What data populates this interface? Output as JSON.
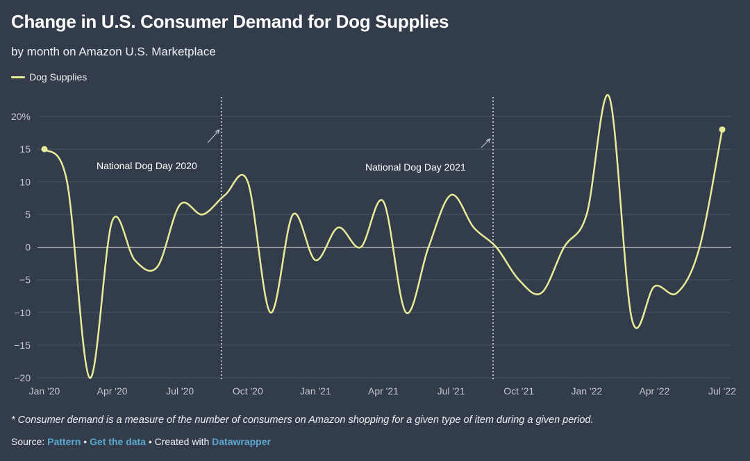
{
  "title": "Change in U.S. Consumer Demand for Dog Supplies",
  "subtitle": "by month on Amazon U.S. Marketplace",
  "legend": {
    "label": "Dog Supplies",
    "color": "#e8ec97"
  },
  "footnote": "* Consumer demand is a measure of the number of consumers on Amazon shopping for a given type of item during a given period.",
  "source": {
    "prefix": "Source: ",
    "pattern_link": "Pattern",
    "sep1": " • ",
    "data_link": "Get the data",
    "sep2": " • Created with ",
    "datawrapper_link": "Datawrapper"
  },
  "chart_data": {
    "type": "line",
    "title": "Change in U.S. Consumer Demand for Dog Supplies",
    "subtitle": "by month on Amazon U.S. Marketplace",
    "xlabel": "",
    "ylabel": "",
    "ylim": [
      -20,
      20
    ],
    "yticks": [
      -20,
      -15,
      -10,
      -5,
      0,
      5,
      10,
      15,
      20
    ],
    "ytick_labels": [
      "−20",
      "−15",
      "−10",
      "−5",
      "0",
      "5",
      "10",
      "15",
      "20%"
    ],
    "xticks": [
      "Jan '20",
      "Apr '20",
      "Jul '20",
      "Oct '20",
      "Jan '21",
      "Apr '21",
      "Jul '21",
      "Oct '21",
      "Jan '22",
      "Apr '22",
      "Jul '22"
    ],
    "grid": true,
    "legend_position": "top-left",
    "series": [
      {
        "name": "Dog Supplies",
        "color": "#e8ec97",
        "x": [
          "Jan '20",
          "Feb '20",
          "Mar '20",
          "Apr '20",
          "May '20",
          "Jun '20",
          "Jul '20",
          "Aug '20",
          "Sep '20",
          "Oct '20",
          "Nov '20",
          "Dec '20",
          "Jan '21",
          "Feb '21",
          "Mar '21",
          "Apr '21",
          "May '21",
          "Jun '21",
          "Jul '21",
          "Aug '21",
          "Sep '21",
          "Oct '21",
          "Nov '21",
          "Dec '21",
          "Jan '22",
          "Feb '22",
          "Mar '22",
          "Apr '22",
          "May '22",
          "Jun '22",
          "Jul '22"
        ],
        "values": [
          15,
          10,
          -20,
          4,
          -2,
          -3,
          6.5,
          5,
          8,
          10,
          -10,
          5,
          -2,
          3,
          0,
          7,
          -10,
          0,
          8,
          3,
          0,
          -5,
          -7,
          0,
          5,
          23,
          -11,
          -6,
          -7,
          0,
          18
        ]
      }
    ],
    "annotations": [
      {
        "label": "National Dog Day 2020",
        "x": "Aug 26 '20"
      },
      {
        "label": "National Dog Day 2021",
        "x": "Aug 26 '21"
      }
    ]
  }
}
